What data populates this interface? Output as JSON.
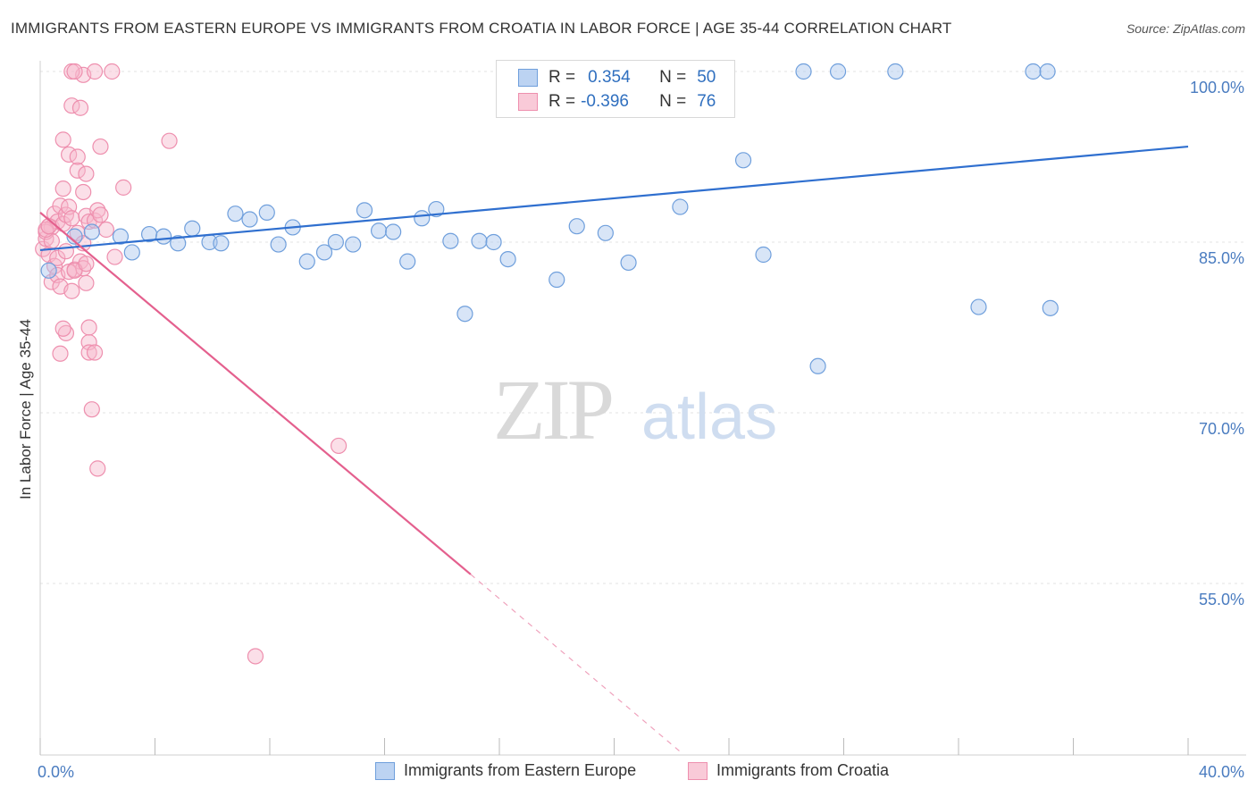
{
  "title": "IMMIGRANTS FROM EASTERN EUROPE VS IMMIGRANTS FROM CROATIA IN LABOR FORCE | AGE 35-44 CORRELATION CHART",
  "source": "Source: ZipAtlas.com",
  "watermark": {
    "zip": "ZIP",
    "atlas": "atlas"
  },
  "legend": {
    "rows": [
      {
        "r_label": "R =",
        "r_value": "0.354",
        "n_label": "N =",
        "n_value": "50"
      },
      {
        "r_label": "R =",
        "r_value": "-0.396",
        "n_label": "N =",
        "n_value": "76"
      }
    ]
  },
  "bottom_legend": {
    "blue_label": "Immigrants from Eastern Europe",
    "pink_label": "Immigrants from Croatia"
  },
  "colors": {
    "blue_fill": "#a9c6ee",
    "blue_stroke": "#6f9fdc",
    "blue_line": "#2f6fcf",
    "pink_fill": "#f6b8cb",
    "pink_stroke": "#ee8fae",
    "pink_line": "#e4608e",
    "axis_text": "#4a7cc0",
    "grid": "#e3e3e3"
  },
  "chart_data": {
    "type": "scatter",
    "xlabel": "",
    "ylabel": "In Labor Force | Age 35-44",
    "xlim": [
      0,
      40
    ],
    "ylim": [
      40,
      100
    ],
    "x_tick_labels": [
      "0.0%",
      "40.0%"
    ],
    "y_tick_labels": [
      "100.0%",
      "85.0%",
      "70.0%",
      "55.0%"
    ],
    "y_ticks": [
      100,
      85,
      70,
      55
    ],
    "grid": "horizontal dashed",
    "series": [
      {
        "name": "Immigrants from Eastern Europe",
        "color": "blue",
        "trend": {
          "x": [
            0,
            40
          ],
          "y": [
            84.3,
            93.4
          ]
        },
        "points": [
          [
            0.3,
            82.5
          ],
          [
            1.2,
            85.5
          ],
          [
            1.8,
            85.9
          ],
          [
            2.8,
            85.5
          ],
          [
            3.2,
            84.1
          ],
          [
            3.8,
            85.7
          ],
          [
            4.3,
            85.5
          ],
          [
            4.8,
            84.9
          ],
          [
            5.3,
            86.2
          ],
          [
            5.9,
            85.0
          ],
          [
            6.3,
            84.9
          ],
          [
            6.8,
            87.5
          ],
          [
            7.3,
            87.0
          ],
          [
            7.9,
            87.6
          ],
          [
            8.3,
            84.8
          ],
          [
            8.8,
            86.3
          ],
          [
            9.3,
            83.3
          ],
          [
            9.9,
            84.1
          ],
          [
            10.3,
            85.0
          ],
          [
            10.9,
            84.8
          ],
          [
            11.3,
            87.8
          ],
          [
            11.8,
            86.0
          ],
          [
            12.3,
            85.9
          ],
          [
            12.8,
            83.3
          ],
          [
            13.3,
            87.1
          ],
          [
            13.8,
            87.9
          ],
          [
            14.3,
            85.1
          ],
          [
            14.8,
            78.7
          ],
          [
            15.3,
            85.1
          ],
          [
            15.8,
            85.0
          ],
          [
            16.3,
            83.5
          ],
          [
            16.7,
            100.0
          ],
          [
            18.0,
            81.7
          ],
          [
            18.7,
            86.4
          ],
          [
            19.7,
            85.8
          ],
          [
            20.5,
            83.2
          ],
          [
            21.3,
            100.0
          ],
          [
            22.3,
            88.1
          ],
          [
            24.5,
            92.2
          ],
          [
            25.2,
            83.9
          ],
          [
            26.6,
            100.0
          ],
          [
            27.1,
            74.1
          ],
          [
            27.8,
            100.0
          ],
          [
            29.8,
            100.0
          ],
          [
            32.7,
            79.3
          ],
          [
            34.6,
            100.0
          ],
          [
            35.1,
            100.0
          ],
          [
            35.2,
            79.2
          ]
        ]
      },
      {
        "name": "Immigrants from Croatia",
        "color": "pink",
        "trend": {
          "x": [
            0,
            15.0
          ],
          "y": [
            87.6,
            55.8
          ]
        },
        "trend_dashed": {
          "x": [
            15.0,
            22.4
          ],
          "y": [
            55.8,
            40.0
          ]
        },
        "points": [
          [
            0.1,
            84.4
          ],
          [
            0.2,
            85.3
          ],
          [
            0.3,
            86.4
          ],
          [
            0.4,
            86.3
          ],
          [
            0.5,
            87.5
          ],
          [
            0.6,
            86.8
          ],
          [
            0.7,
            88.2
          ],
          [
            0.2,
            85.9
          ],
          [
            0.3,
            83.9
          ],
          [
            0.4,
            85.1
          ],
          [
            0.5,
            82.9
          ],
          [
            0.6,
            83.6
          ],
          [
            0.8,
            86.6
          ],
          [
            0.9,
            87.4
          ],
          [
            0.4,
            81.5
          ],
          [
            0.6,
            82.1
          ],
          [
            0.7,
            81.1
          ],
          [
            0.8,
            89.7
          ],
          [
            0.9,
            84.2
          ],
          [
            1.0,
            88.1
          ],
          [
            1.1,
            87.1
          ],
          [
            1.1,
            80.7
          ],
          [
            1.2,
            82.6
          ],
          [
            1.3,
            85.8
          ],
          [
            1.3,
            91.3
          ],
          [
            1.4,
            83.3
          ],
          [
            1.5,
            89.4
          ],
          [
            1.6,
            87.3
          ],
          [
            1.0,
            92.7
          ],
          [
            1.1,
            97.0
          ],
          [
            1.3,
            92.5
          ],
          [
            1.4,
            96.8
          ],
          [
            1.5,
            99.7
          ],
          [
            1.6,
            91.0
          ],
          [
            1.7,
            86.8
          ],
          [
            1.1,
            100.0
          ],
          [
            1.2,
            100.0
          ],
          [
            0.8,
            94.0
          ],
          [
            1.7,
            76.2
          ],
          [
            1.7,
            75.3
          ],
          [
            1.8,
            70.3
          ],
          [
            1.9,
            75.3
          ],
          [
            0.7,
            75.2
          ],
          [
            0.9,
            77.0
          ],
          [
            0.8,
            77.4
          ],
          [
            1.7,
            77.5
          ],
          [
            1.9,
            86.9
          ],
          [
            2.0,
            87.8
          ],
          [
            2.0,
            65.1
          ],
          [
            2.1,
            93.4
          ],
          [
            2.1,
            87.4
          ],
          [
            2.3,
            86.1
          ],
          [
            2.6,
            83.7
          ],
          [
            2.9,
            89.8
          ],
          [
            0.2,
            86.1
          ],
          [
            0.3,
            86.4
          ],
          [
            1.5,
            82.7
          ],
          [
            1.6,
            81.4
          ],
          [
            1.0,
            82.4
          ],
          [
            1.2,
            82.5
          ],
          [
            1.5,
            84.9
          ],
          [
            1.6,
            83.1
          ],
          [
            1.9,
            100.0
          ],
          [
            2.5,
            100.0
          ],
          [
            4.5,
            93.9
          ],
          [
            10.4,
            67.1
          ],
          [
            7.5,
            48.6
          ]
        ]
      }
    ]
  }
}
